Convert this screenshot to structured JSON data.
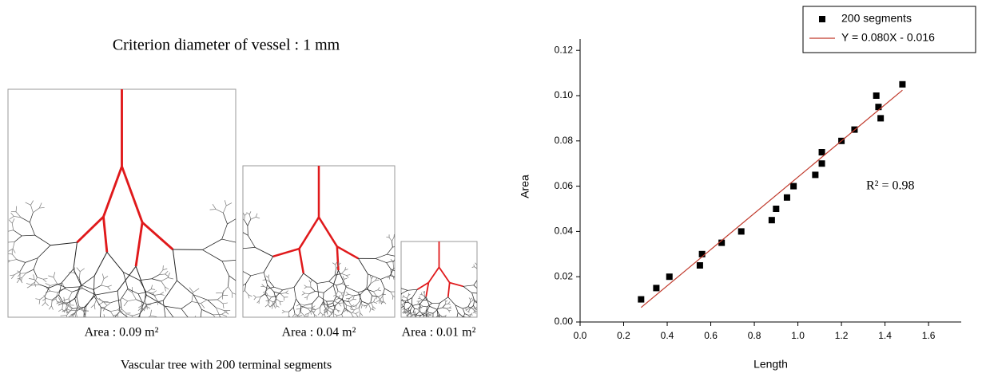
{
  "figure": {
    "title": "Criterion diameter of vessel : 1 mm",
    "panels": [
      {
        "label": "Area : 0.09 m²"
      },
      {
        "label": "Area : 0.04 m²"
      },
      {
        "label": "Area : 0.01 m²"
      }
    ],
    "caption": "Vascular tree with 200 terminal segments"
  },
  "chart_data": {
    "type": "scatter",
    "x_label": "Length",
    "y_label": "Area",
    "annotation": "R² = 0.98",
    "series": [
      {
        "name": "200 segments",
        "color": "#000000",
        "type": "scatter",
        "x": [
          0.28,
          0.35,
          0.41,
          0.55,
          0.56,
          0.65,
          0.74,
          0.88,
          0.9,
          0.95,
          0.98,
          1.08,
          1.11,
          1.11,
          1.2,
          1.26,
          1.36,
          1.37,
          1.38,
          1.48
        ],
        "values": [
          0.01,
          0.015,
          0.02,
          0.025,
          0.03,
          0.035,
          0.04,
          0.045,
          0.05,
          0.055,
          0.06,
          0.065,
          0.07,
          0.075,
          0.08,
          0.085,
          0.1,
          0.095,
          0.09,
          0.105
        ]
      },
      {
        "name": "Y = 0.080X - 0.016",
        "color": "#c0392b",
        "type": "line",
        "x": [
          0.28,
          1.48
        ],
        "values": [
          0.0064,
          0.1024
        ]
      }
    ],
    "xlim": [
      0,
      1.75
    ],
    "ylim": [
      0,
      0.125
    ],
    "xticks": [
      {
        "value": 0,
        "label": "0.0"
      },
      0.2,
      0.4,
      0.6,
      0.8,
      {
        "value": 1,
        "label": "1.0"
      },
      1.2,
      1.4,
      1.6
    ],
    "yticks": [
      {
        "value": 0,
        "label": "0.00"
      },
      0.02,
      0.04,
      0.06,
      0.08,
      {
        "value": 0.1,
        "label": "0.10"
      },
      0.12
    ],
    "grid": false,
    "legend": "top-right"
  }
}
